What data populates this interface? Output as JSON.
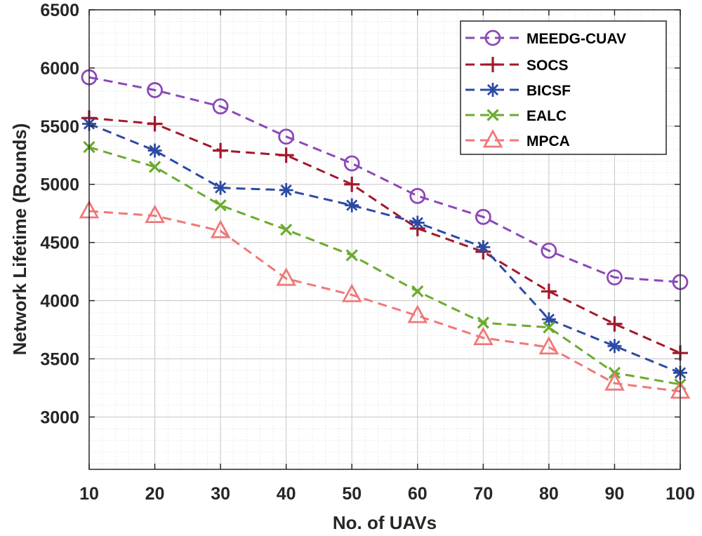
{
  "chart_data": {
    "type": "line",
    "title": "",
    "xlabel": "No. of UAVs",
    "ylabel": "Network Lifetime (Rounds)",
    "x": [
      10,
      20,
      30,
      40,
      50,
      60,
      70,
      80,
      90,
      100
    ],
    "xlim": [
      10,
      100
    ],
    "ylim": [
      2550,
      6500
    ],
    "x_ticks": [
      "10",
      "20",
      "30",
      "40",
      "50",
      "60",
      "70",
      "80",
      "90",
      "100"
    ],
    "y_ticks": [
      "3000",
      "3500",
      "4000",
      "4500",
      "5000",
      "5500",
      "6000",
      "6500"
    ],
    "grid": true,
    "minor_grid": true,
    "legend_position": "top-right",
    "series": [
      {
        "name": "MEEDG-CUAV",
        "color": "#8b48b8",
        "marker": "circle",
        "values": [
          5920,
          5810,
          5670,
          5410,
          5180,
          4900,
          4720,
          4430,
          4200,
          4160
        ]
      },
      {
        "name": "SOCS",
        "color": "#a3182b",
        "marker": "plus",
        "values": [
          5570,
          5520,
          5290,
          5250,
          5000,
          4620,
          4420,
          4080,
          3800,
          3550
        ]
      },
      {
        "name": "BICSF",
        "color": "#2c4aa4",
        "marker": "asterisk",
        "values": [
          5520,
          5290,
          4970,
          4950,
          4820,
          4670,
          4460,
          3840,
          3610,
          3380
        ]
      },
      {
        "name": "EALC",
        "color": "#6bab2d",
        "marker": "x",
        "values": [
          5320,
          5150,
          4820,
          4610,
          4390,
          4080,
          3810,
          3770,
          3380,
          3280
        ]
      },
      {
        "name": "MPCA",
        "color": "#f07878",
        "marker": "triangle",
        "values": [
          4770,
          4730,
          4600,
          4190,
          4050,
          3870,
          3680,
          3600,
          3290,
          3220
        ]
      }
    ]
  }
}
